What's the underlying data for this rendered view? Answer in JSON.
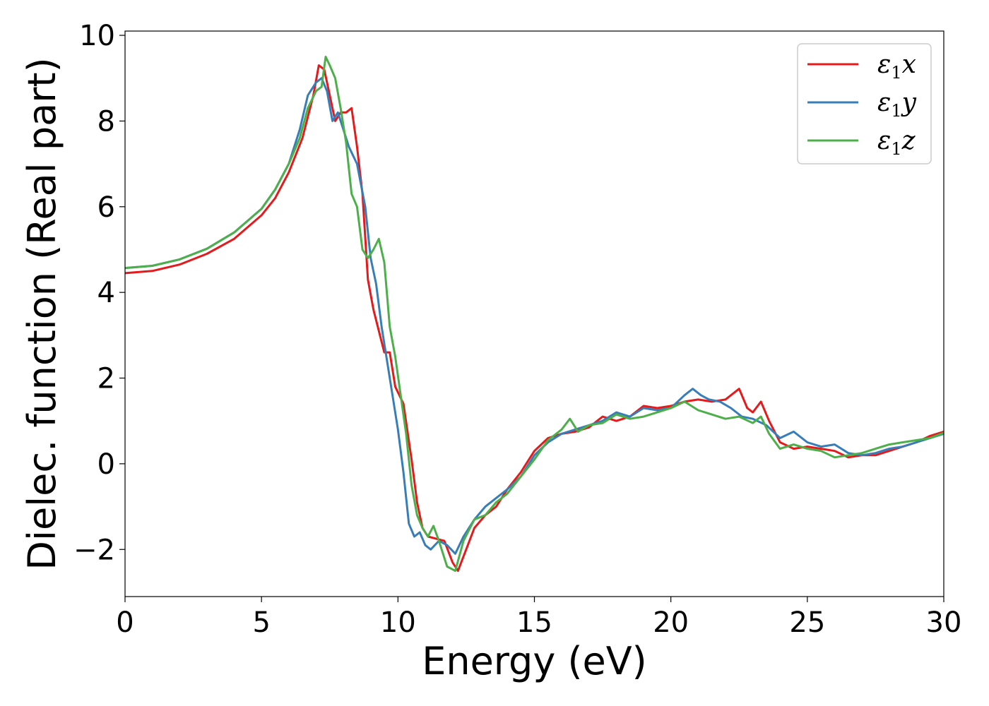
{
  "chart_data": {
    "type": "line",
    "xlabel": "Energy (eV)",
    "ylabel": "Dielec. function (Real part)",
    "xlim": [
      0,
      30
    ],
    "ylim": [
      -3.1,
      10.1
    ],
    "xticks": [
      0,
      5,
      10,
      15,
      20,
      25,
      30
    ],
    "yticks": [
      -2,
      0,
      2,
      4,
      6,
      8,
      10
    ],
    "xtick_labels": [
      "0",
      "5",
      "10",
      "15",
      "20",
      "25",
      "30"
    ],
    "ytick_labels": [
      "−2",
      "0",
      "2",
      "4",
      "6",
      "8",
      "10"
    ],
    "grid": false,
    "legend_position": "top-right",
    "series": [
      {
        "name": "ε1x",
        "name_base": "ε",
        "name_sub": "1",
        "name_tail": "x",
        "color": "#e41a1c",
        "x": [
          0,
          1,
          2,
          3,
          4,
          5,
          5.5,
          6,
          6.5,
          6.9,
          7.1,
          7.3,
          7.5,
          7.7,
          7.9,
          8.1,
          8.3,
          8.5,
          8.7,
          8.9,
          9.1,
          9.3,
          9.5,
          9.7,
          9.9,
          10.2,
          10.5,
          10.7,
          10.9,
          11.1,
          11.4,
          11.7,
          12.0,
          12.2,
          12.5,
          12.8,
          13.2,
          13.6,
          14.0,
          14.5,
          15.0,
          15.5,
          16.0,
          16.5,
          17.0,
          17.5,
          18.0,
          18.5,
          19.0,
          19.5,
          20.0,
          20.5,
          21.0,
          21.5,
          22.0,
          22.5,
          22.8,
          23.0,
          23.3,
          23.6,
          24.0,
          24.5,
          25.0,
          25.5,
          26.0,
          26.5,
          27.0,
          27.5,
          28.0,
          28.5,
          29.0,
          29.5,
          30.0
        ],
        "y": [
          4.45,
          4.5,
          4.65,
          4.9,
          5.25,
          5.8,
          6.2,
          6.8,
          7.6,
          8.6,
          9.3,
          9.2,
          8.6,
          8.0,
          8.2,
          8.2,
          8.3,
          7.4,
          6.3,
          4.3,
          3.6,
          3.1,
          2.6,
          2.6,
          1.8,
          1.4,
          0.1,
          -0.9,
          -1.5,
          -1.7,
          -1.75,
          -1.8,
          -2.3,
          -2.5,
          -2.0,
          -1.5,
          -1.2,
          -1.0,
          -0.6,
          -0.2,
          0.3,
          0.6,
          0.7,
          0.75,
          0.85,
          1.1,
          1.0,
          1.1,
          1.35,
          1.3,
          1.35,
          1.45,
          1.5,
          1.45,
          1.5,
          1.75,
          1.3,
          1.2,
          1.45,
          1.0,
          0.5,
          0.35,
          0.4,
          0.35,
          0.3,
          0.15,
          0.2,
          0.2,
          0.3,
          0.4,
          0.5,
          0.65,
          0.75
        ]
      },
      {
        "name": "ε1y",
        "name_base": "ε",
        "name_sub": "1",
        "name_tail": "y",
        "color": "#377eb8",
        "x": [
          0,
          1,
          2,
          3,
          4,
          5,
          5.5,
          6,
          6.4,
          6.7,
          7.0,
          7.2,
          7.4,
          7.6,
          7.8,
          8.0,
          8.2,
          8.5,
          8.8,
          9.0,
          9.2,
          9.4,
          9.6,
          9.8,
          10.0,
          10.2,
          10.4,
          10.6,
          10.8,
          11.0,
          11.2,
          11.5,
          11.8,
          12.1,
          12.4,
          12.8,
          13.2,
          13.6,
          14.0,
          14.5,
          15.0,
          15.5,
          16.0,
          16.5,
          17.0,
          17.5,
          18.0,
          18.5,
          19.0,
          19.5,
          20.0,
          20.5,
          20.8,
          21.1,
          21.4,
          21.8,
          22.2,
          22.6,
          23.0,
          23.5,
          24.0,
          24.5,
          25.0,
          25.5,
          26.0,
          26.5,
          27.0,
          27.5,
          28.0,
          28.5,
          29.0,
          29.5,
          30.0
        ],
        "y": [
          4.57,
          4.62,
          4.77,
          5.02,
          5.4,
          5.95,
          6.4,
          7.0,
          7.8,
          8.6,
          8.9,
          9.0,
          8.7,
          8.0,
          8.2,
          7.8,
          7.4,
          7.0,
          6.0,
          4.8,
          4.2,
          3.2,
          2.4,
          1.6,
          0.8,
          -0.2,
          -1.4,
          -1.7,
          -1.6,
          -1.9,
          -2.0,
          -1.8,
          -1.9,
          -2.1,
          -1.7,
          -1.3,
          -1.0,
          -0.8,
          -0.6,
          -0.3,
          0.2,
          0.5,
          0.7,
          0.8,
          0.9,
          1.0,
          1.2,
          1.1,
          1.3,
          1.25,
          1.3,
          1.6,
          1.75,
          1.6,
          1.5,
          1.45,
          1.3,
          1.1,
          1.05,
          0.9,
          0.6,
          0.75,
          0.5,
          0.4,
          0.45,
          0.25,
          0.2,
          0.25,
          0.35,
          0.4,
          0.5,
          0.6,
          0.7
        ]
      },
      {
        "name": "ε1z",
        "name_base": "ε",
        "name_sub": "1",
        "name_tail": "z",
        "color": "#4daf4a",
        "x": [
          0,
          1,
          2,
          3,
          4,
          5,
          5.5,
          6,
          6.4,
          6.7,
          7.0,
          7.2,
          7.35,
          7.5,
          7.7,
          7.9,
          8.1,
          8.3,
          8.5,
          8.7,
          8.9,
          9.1,
          9.3,
          9.5,
          9.7,
          9.9,
          10.1,
          10.3,
          10.5,
          10.7,
          10.9,
          11.1,
          11.3,
          11.5,
          11.8,
          12.1,
          12.4,
          12.8,
          13.2,
          13.6,
          14.0,
          14.5,
          15.0,
          15.5,
          16.0,
          16.3,
          16.6,
          17.0,
          17.5,
          18.0,
          18.5,
          19.0,
          19.5,
          20.0,
          20.5,
          21.0,
          21.5,
          22.0,
          22.5,
          23.0,
          23.3,
          23.6,
          24.0,
          24.5,
          25.0,
          25.5,
          26.0,
          26.5,
          27.0,
          27.5,
          28.0,
          28.5,
          29.0,
          29.5,
          30.0
        ],
        "y": [
          4.57,
          4.62,
          4.77,
          5.02,
          5.4,
          5.95,
          6.4,
          7.0,
          7.6,
          8.3,
          8.7,
          8.8,
          9.5,
          9.3,
          9.0,
          8.3,
          7.5,
          6.3,
          6.0,
          5.0,
          4.8,
          5.0,
          5.25,
          4.7,
          3.2,
          2.5,
          1.6,
          0.7,
          -0.5,
          -1.2,
          -1.5,
          -1.7,
          -1.45,
          -1.8,
          -2.4,
          -2.5,
          -1.8,
          -1.3,
          -1.2,
          -0.9,
          -0.7,
          -0.3,
          0.1,
          0.55,
          0.8,
          1.05,
          0.75,
          0.9,
          0.95,
          1.15,
          1.05,
          1.1,
          1.2,
          1.3,
          1.45,
          1.25,
          1.15,
          1.05,
          1.1,
          0.95,
          1.1,
          0.7,
          0.35,
          0.45,
          0.35,
          0.3,
          0.15,
          0.2,
          0.25,
          0.35,
          0.45,
          0.5,
          0.55,
          0.6,
          0.72
        ]
      }
    ]
  }
}
